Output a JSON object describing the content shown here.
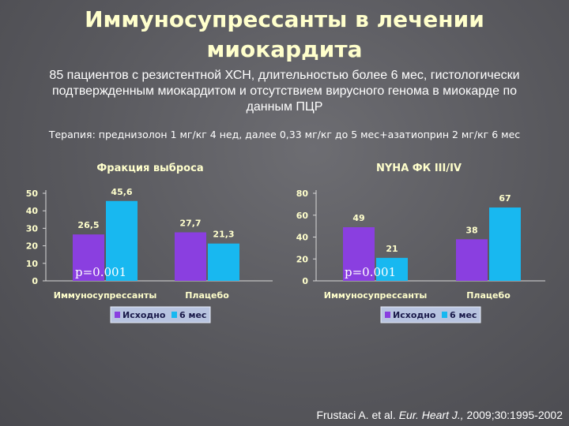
{
  "slide": {
    "title_line1": "Иммуносупрессанты в лечении",
    "title_line2": "миокардита",
    "subtitle_line1": "85 пациентов с резистентной ХСН, длительностью более 6 мес, гистологически",
    "subtitle_line2": "подтвержденным миокардитом и отсутствием вирусного генома в миокарде по",
    "subtitle_line3": "данным ПЦР",
    "therapy": "Терапия: преднизолон 1 мг/кг 4 нед, далее 0,33 мг/кг до 5 мес+азатиоприн 2 мг/кг 6 мес",
    "citation_authors": "Frustaci A. et al. ",
    "citation_journal": "Eur. Heart J.,",
    "citation_rest": " 2009;30:1995-2002"
  },
  "colors": {
    "series1": "#8a3fe0",
    "series2": "#18b8f0",
    "legend_bg": "#b8c4e0"
  },
  "chart_data": [
    {
      "type": "bar",
      "title": "Фракция выброса",
      "categories": [
        "Иммуносупрессанты",
        "Плацебо"
      ],
      "series": [
        {
          "name": "Исходно",
          "values": [
            26.5,
            27.7
          ],
          "labels": [
            "26,5",
            "27,7"
          ]
        },
        {
          "name": "6 мес",
          "values": [
            45.6,
            21.3
          ],
          "labels": [
            "45,6",
            "21,3"
          ]
        }
      ],
      "ylim": [
        0,
        50
      ],
      "yticks": [
        0,
        10,
        20,
        30,
        40,
        50
      ],
      "annotation": "p=0.001",
      "legend": "bottom"
    },
    {
      "type": "bar",
      "title": "NYHA ФК III/IV",
      "categories": [
        "Иммуносупрессанты",
        "Плацебо"
      ],
      "series": [
        {
          "name": "Исходно",
          "values": [
            49,
            38
          ],
          "labels": [
            "49",
            "38"
          ]
        },
        {
          "name": "6 мес",
          "values": [
            21,
            67
          ],
          "labels": [
            "21",
            "67"
          ]
        }
      ],
      "ylim": [
        0,
        80
      ],
      "yticks": [
        0,
        20,
        40,
        60,
        80
      ],
      "annotation": "p=0.001",
      "legend": "bottom"
    }
  ]
}
